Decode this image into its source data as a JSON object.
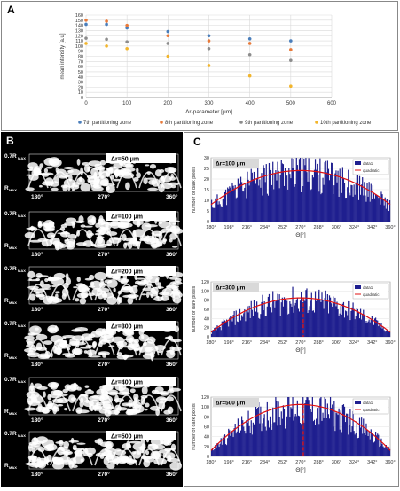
{
  "panels": {
    "a_label": "A",
    "b_label": "B",
    "c_label": "C"
  },
  "colors": {
    "s7": "#4a7ebb",
    "s8": "#e87a3a",
    "s9": "#8c8c8c",
    "s10": "#f2b52c",
    "bars": "#1f1f8f",
    "quadratic": "#e01010"
  },
  "chart_data": [
    {
      "type": "scatter",
      "xlabel": "Δr-parameter [μm]",
      "ylabel": "mean intensity [a.u]",
      "xlim": [
        0,
        600
      ],
      "ylim": [
        0,
        160
      ],
      "xticks": [
        0,
        100,
        200,
        300,
        400,
        500,
        600
      ],
      "yticks": [
        0,
        10,
        20,
        30,
        40,
        50,
        60,
        70,
        80,
        90,
        100,
        110,
        120,
        130,
        140,
        150,
        160
      ],
      "grid": true,
      "legend_position": "bottom",
      "series": [
        {
          "name": "7th partitioning zone",
          "x": [
            0,
            50,
            100,
            200,
            300,
            400,
            500
          ],
          "y": [
            142,
            142,
            135,
            128,
            120,
            114,
            110
          ]
        },
        {
          "name": "8th partitioning zone",
          "x": [
            0,
            50,
            100,
            200,
            300,
            400,
            500
          ],
          "y": [
            150,
            148,
            140,
            120,
            110,
            105,
            93
          ]
        },
        {
          "name": "9th partitioning zone",
          "x": [
            0,
            50,
            100,
            200,
            300,
            400,
            500
          ],
          "y": [
            115,
            113,
            108,
            105,
            95,
            83,
            72
          ]
        },
        {
          "name": "10th partitioning zone",
          "x": [
            0,
            50,
            100,
            200,
            300,
            400,
            500
          ],
          "y": [
            105,
            100,
            95,
            80,
            62,
            42,
            22
          ]
        }
      ]
    },
    {
      "type": "bar",
      "annotation": "Δr=100 μm",
      "xlabel": "Θ[°]",
      "ylabel": "number of dark pixels",
      "xlim": [
        180,
        360
      ],
      "ylim": [
        0,
        30
      ],
      "xticks": [
        "180°",
        "198°",
        "216°",
        "234°",
        "252°",
        "270°",
        "288°",
        "306°",
        "324°",
        "342°",
        "360°"
      ],
      "yticks": [
        0,
        5,
        10,
        15,
        20,
        25,
        30
      ],
      "legend": [
        "data1",
        "quadratic"
      ],
      "fit_peak": 24,
      "fit_ends": 8,
      "vertical_marker": false
    },
    {
      "type": "bar",
      "annotation": "Δr=300 μm",
      "xlabel": "Θ[°]",
      "ylabel": "number of dark pixels",
      "xlim": [
        180,
        360
      ],
      "ylim": [
        0,
        120
      ],
      "xticks": [
        "180°",
        "198°",
        "216°",
        "234°",
        "252°",
        "270°",
        "288°",
        "306°",
        "324°",
        "342°",
        "360°"
      ],
      "yticks": [
        0,
        20,
        40,
        60,
        80,
        100,
        120
      ],
      "legend": [
        "data1",
        "quadratic"
      ],
      "fit_peak": 85,
      "fit_ends": 10,
      "vertical_marker": true
    },
    {
      "type": "bar",
      "annotation": "Δr=500 μm",
      "xlabel": "Θ[°]",
      "ylabel": "number of dark pixels",
      "xlim": [
        180,
        360
      ],
      "ylim": [
        0,
        120
      ],
      "xticks": [
        "180°",
        "198°",
        "216°",
        "234°",
        "252°",
        "270°",
        "288°",
        "306°",
        "324°",
        "342°",
        "360°"
      ],
      "yticks": [
        0,
        20,
        40,
        60,
        80,
        100,
        120
      ],
      "legend": [
        "data1",
        "quadratic"
      ],
      "fit_peak": 105,
      "fit_ends": 12,
      "vertical_marker": true
    }
  ],
  "panel_b": {
    "top_label": "0.7R",
    "top_label_sub": "MAX",
    "bottom_label": "R",
    "bottom_label_sub": "MAX",
    "angle_labels": [
      "180°",
      "270°",
      "360°"
    ],
    "strips": [
      {
        "label": "Δr=50 μm"
      },
      {
        "label": "Δr=100 μm"
      },
      {
        "label": "Δr=200 μm"
      },
      {
        "label": "Δr=300 μm"
      },
      {
        "label": "Δr=400 μm"
      },
      {
        "label": "Δr=500 μm"
      }
    ]
  }
}
